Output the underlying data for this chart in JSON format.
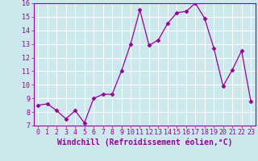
{
  "x": [
    0,
    1,
    2,
    3,
    4,
    5,
    6,
    7,
    8,
    9,
    10,
    11,
    12,
    13,
    14,
    15,
    16,
    17,
    18,
    19,
    20,
    21,
    22,
    23
  ],
  "y": [
    8.5,
    8.6,
    8.1,
    7.5,
    8.1,
    7.2,
    9.0,
    9.3,
    9.3,
    11.0,
    13.0,
    15.5,
    12.9,
    13.3,
    14.5,
    15.3,
    15.4,
    16.0,
    14.9,
    12.7,
    9.9,
    11.1,
    12.5,
    8.8
  ],
  "xlim": [
    -0.5,
    23.5
  ],
  "ylim": [
    7,
    16
  ],
  "yticks": [
    7,
    8,
    9,
    10,
    11,
    12,
    13,
    14,
    15,
    16
  ],
  "xticks": [
    0,
    1,
    2,
    3,
    4,
    5,
    6,
    7,
    8,
    9,
    10,
    11,
    12,
    13,
    14,
    15,
    16,
    17,
    18,
    19,
    20,
    21,
    22,
    23
  ],
  "xlabel": "Windchill (Refroidissement éolien,°C)",
  "line_color": "#990099",
  "marker": "D",
  "marker_size": 2.5,
  "bg_color": "#cce8ed",
  "grid_color": "#ffffff",
  "tick_color": "#990099",
  "label_color": "#990099",
  "tick_fontsize": 6.0,
  "xlabel_fontsize": 7.0
}
